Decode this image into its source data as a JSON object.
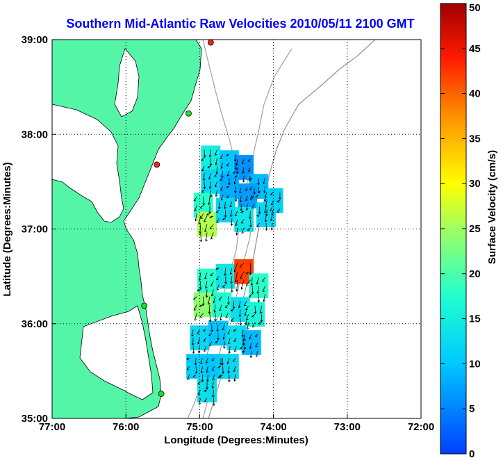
{
  "chart_data": {
    "type": "heatmap",
    "title": "Southern Mid-Atlantic Raw Velocities 2010/05/11 2100 GMT",
    "xlabel": "Longitude (Degrees:Minutes)",
    "ylabel": "Latitude (Degrees:Minutes)",
    "xlim": [
      -77,
      -72
    ],
    "ylim": [
      35,
      39
    ],
    "x_ticks": [
      -77,
      -76,
      -75,
      -74,
      -73,
      -72
    ],
    "x_tick_labels": [
      "77:00",
      "76:00",
      "75:00",
      "74:00",
      "73:00",
      "72:00"
    ],
    "y_ticks": [
      35,
      36,
      37,
      38,
      39
    ],
    "y_tick_labels": [
      "35:00",
      "36:00",
      "37:00",
      "38:00",
      "39:00"
    ],
    "grid": "dotted",
    "colorbar": {
      "label": "Surface Velocity (cm/s)",
      "min": 0,
      "max": 50,
      "ticks": [
        0,
        5,
        10,
        15,
        20,
        25,
        30,
        35,
        40,
        45,
        50
      ],
      "colormap": "jet"
    },
    "velocity_cells": [
      {
        "lon": -74.85,
        "lat": 37.75,
        "speed": 15
      },
      {
        "lon": -74.6,
        "lat": 37.7,
        "speed": 10
      },
      {
        "lon": -74.4,
        "lat": 37.65,
        "speed": 6
      },
      {
        "lon": -74.2,
        "lat": 37.45,
        "speed": 9
      },
      {
        "lon": -74.0,
        "lat": 37.3,
        "speed": 11
      },
      {
        "lon": -74.85,
        "lat": 37.5,
        "speed": 12
      },
      {
        "lon": -74.6,
        "lat": 37.45,
        "speed": 8
      },
      {
        "lon": -74.35,
        "lat": 37.35,
        "speed": 7
      },
      {
        "lon": -74.1,
        "lat": 37.15,
        "speed": 12
      },
      {
        "lon": -74.95,
        "lat": 37.25,
        "speed": 18
      },
      {
        "lon": -74.9,
        "lat": 37.05,
        "speed": 26
      },
      {
        "lon": -74.65,
        "lat": 37.2,
        "speed": 12
      },
      {
        "lon": -74.4,
        "lat": 37.1,
        "speed": 14
      },
      {
        "lon": -74.9,
        "lat": 36.45,
        "speed": 18
      },
      {
        "lon": -74.65,
        "lat": 36.5,
        "speed": 14
      },
      {
        "lon": -74.4,
        "lat": 36.55,
        "speed": 42
      },
      {
        "lon": -74.2,
        "lat": 36.4,
        "speed": 18
      },
      {
        "lon": -74.95,
        "lat": 36.2,
        "speed": 24
      },
      {
        "lon": -74.7,
        "lat": 36.2,
        "speed": 17
      },
      {
        "lon": -74.45,
        "lat": 36.15,
        "speed": 13
      },
      {
        "lon": -74.25,
        "lat": 36.1,
        "speed": 16
      },
      {
        "lon": -75.0,
        "lat": 35.85,
        "speed": 12
      },
      {
        "lon": -74.75,
        "lat": 35.9,
        "speed": 10
      },
      {
        "lon": -74.5,
        "lat": 35.85,
        "speed": 13
      },
      {
        "lon": -74.3,
        "lat": 35.8,
        "speed": 9
      },
      {
        "lon": -75.05,
        "lat": 35.55,
        "speed": 11
      },
      {
        "lon": -74.8,
        "lat": 35.55,
        "speed": 10
      },
      {
        "lon": -74.6,
        "lat": 35.55,
        "speed": 12
      },
      {
        "lon": -74.9,
        "lat": 35.3,
        "speed": 13
      }
    ],
    "stations": [
      {
        "lon": -74.85,
        "lat": 38.97,
        "status": "red"
      },
      {
        "lon": -75.15,
        "lat": 38.22,
        "status": "green"
      },
      {
        "lon": -75.58,
        "lat": 37.68,
        "status": "red"
      },
      {
        "lon": -75.75,
        "lat": 36.19,
        "status": "green"
      },
      {
        "lon": -75.52,
        "lat": 35.26,
        "status": "green"
      }
    ]
  }
}
